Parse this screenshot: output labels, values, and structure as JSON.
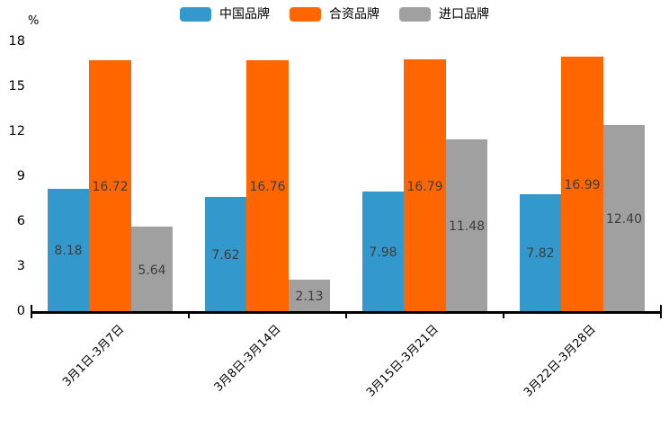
{
  "chart_data": {
    "type": "bar",
    "title": "",
    "xlabel": "",
    "ylabel": "%",
    "categories": [
      "3月1日-3月7日",
      "3月8日-3月14日",
      "3月15日-3月21日",
      "3月22日-3月28日"
    ],
    "series": [
      {
        "name": "中国品牌",
        "color": "#3398CB",
        "values": [
          8.18,
          7.62,
          7.98,
          7.82
        ],
        "labels": [
          "8.18",
          "7.62",
          "7.98",
          "7.82"
        ]
      },
      {
        "name": "合资品牌",
        "color": "#FF6600",
        "values": [
          16.72,
          16.76,
          16.79,
          16.99
        ],
        "labels": [
          "16.72",
          "16.76",
          "16.79",
          "16.99"
        ]
      },
      {
        "name": "进口品牌",
        "color": "#A0A0A0",
        "values": [
          5.64,
          2.13,
          11.48,
          12.4
        ],
        "labels": [
          "5.64",
          "2.13",
          "11.48",
          "12.40"
        ]
      }
    ],
    "ylim": [
      0,
      18
    ],
    "yticks": [
      0,
      3,
      6,
      9,
      12,
      15,
      18
    ],
    "grid": false,
    "legend_position": "top",
    "value_label_position": "inside-center",
    "xtick_rotation_deg": 45,
    "colors": {
      "axis": "#000000",
      "tick_text": "#000000",
      "value_label_text": "#3d3d3d",
      "background": "#ffffff"
    }
  }
}
